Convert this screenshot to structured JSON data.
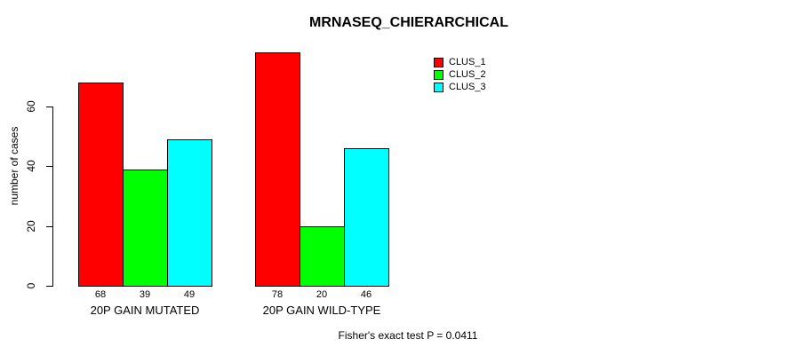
{
  "chart_data": {
    "type": "bar",
    "title": "MRNASEQ_CHIERARCHICAL",
    "xlabel": "",
    "ylabel": "number of cases",
    "categories": [
      "20P GAIN MUTATED",
      "20P GAIN WILD-TYPE"
    ],
    "series": [
      {
        "name": "CLUS_1",
        "color": "#ff0000",
        "values": [
          68,
          78
        ]
      },
      {
        "name": "CLUS_2",
        "color": "#00ff00",
        "values": [
          39,
          20
        ]
      },
      {
        "name": "CLUS_3",
        "color": "#00ffff",
        "values": [
          49,
          46
        ]
      }
    ],
    "yticks": [
      0,
      20,
      40,
      60
    ],
    "ylim": [
      0,
      80
    ],
    "grid": false,
    "legend_position": "top-right",
    "show_bar_value_labels": true,
    "annotation": "Fisher's exact test P = 0.0411"
  },
  "colors": {
    "background": "#ffffff",
    "axis": "#000000",
    "text": "#000000"
  }
}
